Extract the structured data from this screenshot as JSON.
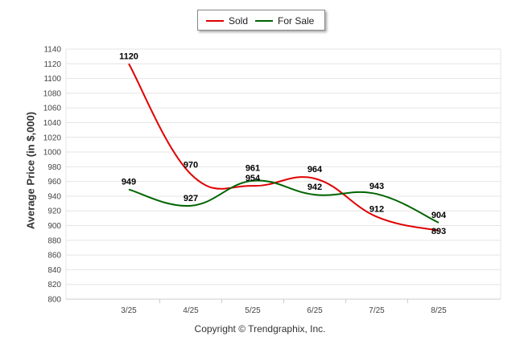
{
  "legend": {
    "sold_label": "Sold",
    "forsale_label": "For Sale"
  },
  "ylabel": "Average Price (in $,000)",
  "copyright": "Copyright © Trendgraphix, Inc.",
  "colors": {
    "sold": "#e00000",
    "for_sale": "#006400",
    "grid": "#e4e4e4"
  },
  "chart_data": {
    "type": "line",
    "categories": [
      "3/25",
      "4/25",
      "5/25",
      "6/25",
      "7/25",
      "8/25"
    ],
    "series": [
      {
        "name": "Sold",
        "values": [
          1120,
          970,
          954,
          964,
          912,
          893
        ]
      },
      {
        "name": "For Sale",
        "values": [
          949,
          927,
          961,
          942,
          943,
          904
        ]
      }
    ],
    "ylabel": "Average Price (in $,000)",
    "ylim": [
      800,
      1140
    ],
    "yticks": [
      800,
      820,
      840,
      860,
      880,
      900,
      920,
      940,
      960,
      980,
      1000,
      1020,
      1040,
      1060,
      1080,
      1100,
      1120,
      1140
    ],
    "grid": true,
    "legend_position": "top-center"
  }
}
